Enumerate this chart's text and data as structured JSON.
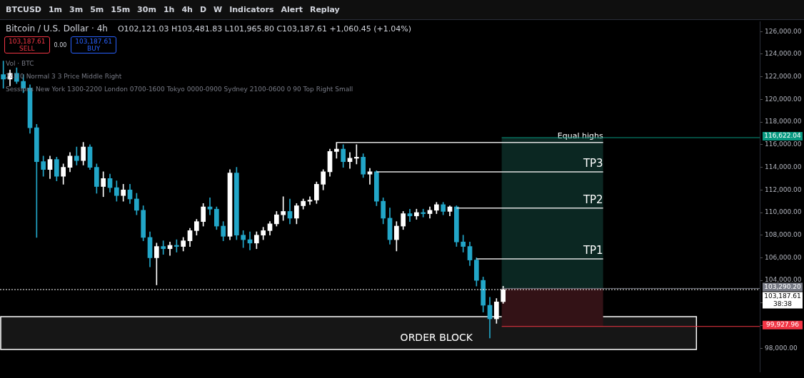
{
  "chart_data": {
    "type": "candlestick",
    "title": "Bitcoin / U.S. Dollar · 4h",
    "subtitle": "O102,121.03 H103,481.83 L101,965.80 C103,187.61 +1,060.45 (+1.04%)",
    "categories": [
      null,
      null,
      null,
      null,
      null,
      null,
      null,
      null,
      null,
      null,
      null,
      null,
      null,
      null,
      null,
      null,
      null,
      null,
      null,
      null,
      null,
      null,
      null,
      null,
      null,
      null,
      null,
      null,
      null,
      null,
      null,
      null,
      null,
      null,
      null,
      null,
      null,
      null,
      null,
      null,
      null,
      null,
      null,
      null,
      null,
      null,
      null,
      null,
      null,
      null,
      null,
      null,
      null,
      null,
      null,
      null,
      null,
      null,
      null,
      null,
      null,
      null,
      null,
      null,
      null,
      null,
      null,
      null,
      null,
      null,
      null,
      null,
      null,
      null,
      null,
      null,
      null,
      null,
      null,
      null,
      null,
      null,
      null,
      null,
      null,
      null,
      null,
      null,
      null,
      null,
      null,
      null,
      null,
      null,
      null,
      null,
      null,
      null,
      null,
      null,
      null,
      null,
      null,
      null,
      null,
      null,
      null,
      null,
      null,
      null,
      null,
      null,
      null,
      null
    ],
    "ohlc": [
      [
        122200,
        123400,
        121000,
        121800
      ],
      [
        121800,
        122600,
        121200,
        122300
      ],
      [
        122300,
        122800,
        121400,
        121600
      ],
      [
        121600,
        122200,
        120600,
        121000
      ],
      [
        121000,
        121300,
        117000,
        117500
      ],
      [
        117500,
        117800,
        107800,
        114500
      ],
      [
        114500,
        115000,
        113200,
        113800
      ],
      [
        113800,
        115000,
        113000,
        114700
      ],
      [
        114700,
        114900,
        112800,
        113200
      ],
      [
        113200,
        114300,
        112500,
        114000
      ],
      [
        114000,
        115300,
        113600,
        115000
      ],
      [
        115000,
        115800,
        114200,
        114600
      ],
      [
        114600,
        116200,
        114200,
        115800
      ],
      [
        115800,
        116000,
        113800,
        114000
      ],
      [
        114000,
        114300,
        111700,
        112300
      ],
      [
        112300,
        113600,
        111400,
        113000
      ],
      [
        113000,
        113400,
        111800,
        112200
      ],
      [
        112200,
        112800,
        111000,
        111500
      ],
      [
        111500,
        112500,
        111000,
        112000
      ],
      [
        112000,
        112500,
        110800,
        111200
      ],
      [
        111200,
        111700,
        109800,
        110200
      ],
      [
        110200,
        110600,
        107500,
        107800
      ],
      [
        107800,
        108300,
        105200,
        106000
      ],
      [
        106000,
        107300,
        103600,
        107000
      ],
      [
        107000,
        107500,
        106300,
        106800
      ],
      [
        106800,
        107400,
        106200,
        107100
      ],
      [
        107100,
        107600,
        106500,
        107000
      ],
      [
        107000,
        107800,
        106600,
        107500
      ],
      [
        107500,
        108600,
        107000,
        108400
      ],
      [
        108400,
        109400,
        108000,
        109200
      ],
      [
        109200,
        110800,
        108800,
        110500
      ],
      [
        110500,
        111300,
        109800,
        110300
      ],
      [
        110300,
        110500,
        108500,
        108800
      ],
      [
        108800,
        109200,
        107500,
        107900
      ],
      [
        107900,
        113800,
        107600,
        113500
      ],
      [
        113500,
        114000,
        107600,
        108000
      ],
      [
        108000,
        108400,
        106900,
        107600
      ],
      [
        107600,
        108300,
        106700,
        107300
      ],
      [
        107300,
        108300,
        106800,
        108000
      ],
      [
        108000,
        108700,
        107600,
        108400
      ],
      [
        108400,
        109200,
        108000,
        109000
      ],
      [
        109000,
        110100,
        108800,
        109800
      ],
      [
        109800,
        111400,
        109300,
        110100
      ],
      [
        110100,
        111200,
        109000,
        109500
      ],
      [
        109500,
        110800,
        109000,
        110600
      ],
      [
        110600,
        111200,
        110300,
        111000
      ],
      [
        111000,
        111400,
        110700,
        111100
      ],
      [
        111100,
        112700,
        110800,
        112500
      ],
      [
        112500,
        113800,
        112000,
        113600
      ],
      [
        113600,
        115600,
        113200,
        115400
      ],
      [
        115400,
        116200,
        114800,
        115600
      ],
      [
        115600,
        116000,
        114000,
        114500
      ],
      [
        114500,
        115300,
        113900,
        114800
      ],
      [
        114800,
        116000,
        114300,
        114900
      ],
      [
        114900,
        115200,
        113100,
        113400
      ],
      [
        113400,
        113900,
        112500,
        113600
      ],
      [
        113600,
        113700,
        110600,
        111000
      ],
      [
        111000,
        111300,
        109000,
        109500
      ],
      [
        109500,
        110400,
        107200,
        107600
      ],
      [
        107600,
        109200,
        106600,
        108800
      ],
      [
        108800,
        110100,
        108500,
        109900
      ],
      [
        109900,
        110300,
        109200,
        109700
      ],
      [
        109700,
        110300,
        109400,
        110000
      ],
      [
        110000,
        110300,
        109600,
        109900
      ],
      [
        109900,
        110500,
        109500,
        110200
      ],
      [
        110200,
        110900,
        109900,
        110700
      ],
      [
        110700,
        110900,
        109800,
        110100
      ],
      [
        110100,
        110600,
        109700,
        110500
      ],
      [
        110500,
        110600,
        107000,
        107400
      ],
      [
        107400,
        108000,
        106500,
        107000
      ],
      [
        107000,
        107400,
        105300,
        105800
      ],
      [
        105800,
        106000,
        103500,
        104000
      ],
      [
        104000,
        104300,
        101200,
        101800
      ],
      [
        101800,
        102500,
        98900,
        100600
      ],
      [
        100600,
        102400,
        100200,
        102100
      ],
      [
        102121.03,
        103481.83,
        101965.8,
        103187.61
      ],
      null,
      null,
      null,
      null,
      null,
      null,
      null,
      null,
      null,
      null,
      null,
      null,
      null,
      null,
      null,
      null,
      null,
      null,
      null,
      null,
      null,
      null,
      null,
      null,
      null,
      null,
      null,
      null,
      null,
      null,
      null,
      null,
      null,
      null,
      null,
      null,
      null,
      null
    ],
    "colors": [
      "#22a6c8",
      "#ffffff",
      "#22a6c8",
      "#22a6c8",
      "#22a6c8",
      "#22a6c8",
      "#22a6c8",
      "#ffffff",
      "#22a6c8",
      "#ffffff",
      "#ffffff",
      "#22a6c8",
      "#ffffff",
      "#22a6c8",
      "#22a6c8",
      "#ffffff",
      "#22a6c8",
      "#22a6c8",
      "#ffffff",
      "#22a6c8",
      "#22a6c8",
      "#22a6c8",
      "#22a6c8",
      "#ffffff",
      "#22a6c8",
      "#ffffff",
      "#22a6c8",
      "#ffffff",
      "#ffffff",
      "#ffffff",
      "#ffffff",
      "#22a6c8",
      "#22a6c8",
      "#22a6c8",
      "#ffffff",
      "#22a6c8",
      "#22a6c8",
      "#22a6c8",
      "#ffffff",
      "#ffffff",
      "#ffffff",
      "#ffffff",
      "#ffffff",
      "#22a6c8",
      "#ffffff",
      "#ffffff",
      "#ffffff",
      "#ffffff",
      "#ffffff",
      "#ffffff",
      "#ffffff",
      "#22a6c8",
      "#ffffff",
      "#ffffff",
      "#22a6c8",
      "#ffffff",
      "#22a6c8",
      "#22a6c8",
      "#22a6c8",
      "#ffffff",
      "#ffffff",
      "#22a6c8",
      "#ffffff",
      "#22a6c8",
      "#ffffff",
      "#ffffff",
      "#22a6c8",
      "#ffffff",
      "#22a6c8",
      "#22a6c8",
      "#22a6c8",
      "#22a6c8",
      "#22a6c8",
      "#22a6c8",
      "#ffffff",
      "#ffffff",
      null,
      null,
      null,
      null,
      null,
      null,
      null,
      null,
      null,
      null,
      null,
      null,
      null,
      null,
      null,
      null,
      null,
      null,
      null,
      null,
      null,
      null,
      null,
      null,
      null,
      null,
      null,
      null,
      null,
      null,
      null,
      null,
      null,
      null,
      null,
      null,
      null,
      null
    ],
    "ylim": [
      95900,
      126900
    ],
    "yticks": [
      {
        "value": 98000,
        "label": "98,000.00"
      },
      {
        "value": 100000,
        "label": null
      },
      {
        "value": 102000,
        "label": null
      },
      {
        "value": 104000,
        "label": "104,000.00"
      },
      {
        "value": 106000,
        "label": "106,000.00"
      },
      {
        "value": 108000,
        "label": "108,000.00"
      },
      {
        "value": 110000,
        "label": "110,000.00"
      },
      {
        "value": 112000,
        "label": "112,000.00"
      },
      {
        "value": 114000,
        "label": "114,000.00"
      },
      {
        "value": 116000,
        "label": "116,000.00"
      },
      {
        "value": 118000,
        "label": "118,000.00"
      },
      {
        "value": 120000,
        "label": "120,000.00"
      },
      {
        "value": 122000,
        "label": "122,000.00"
      },
      {
        "value": 124000,
        "label": "124,000.00"
      },
      {
        "value": 126000,
        "label": "126,000.00"
      }
    ],
    "tick_labels": "y",
    "bands": [
      {
        "axis": "y",
        "from": 97900,
        "to": 100800,
        "label": "ORDER BLOCK"
      },
      {
        "axis": "y",
        "from": 103290.2,
        "to": 116622.04,
        "color": "#0b2722"
      },
      {
        "axis": "y",
        "from": 99927.96,
        "to": 103290.2,
        "color": "#331216"
      }
    ],
    "ref_lines": [
      {
        "axis": "y",
        "value": 116200,
        "label": "Equal highs",
        "line_style": "solid"
      },
      {
        "axis": "y",
        "value": 113600,
        "label": "TP3",
        "line_style": "solid"
      },
      {
        "axis": "y",
        "value": 110400,
        "label": "TP2",
        "line_style": "solid"
      },
      {
        "axis": "y",
        "value": 105900,
        "label": "TP1",
        "line_style": "solid"
      },
      {
        "axis": "y",
        "value": 116622.04,
        "label": "116,622.04",
        "line_style": "solid",
        "color": "#089981"
      },
      {
        "axis": "y",
        "value": 103290.2,
        "label": "103,290.20",
        "line_style": "solid",
        "color": "#787b86"
      },
      {
        "axis": "y",
        "value": 103187.61,
        "label": "103,187.61\n38:38",
        "line_style": "dotted",
        "color": "#ffffff"
      },
      {
        "axis": "y",
        "value": 99927.96,
        "label": "99,927.96",
        "line_style": "solid",
        "color": "#f23645"
      }
    ],
    "legend": false,
    "annotations": [
      "BTCUSD",
      "1m",
      "3m",
      "5m",
      "15m",
      "30m",
      "1h",
      "4h",
      "D",
      "W",
      "Indicators",
      "Alert",
      "Replay",
      "103,187.61",
      "SELL",
      "0.00",
      "103,187.61",
      "BUY",
      "Vol · BTC",
      "240 0 Normal 3 3 Price Middle Right",
      "Sessions New York 1300-2200 London 0700-1600 Tokyo 0000-0900 Sydney 2100-0600 0 90 Top Right Small"
    ]
  }
}
